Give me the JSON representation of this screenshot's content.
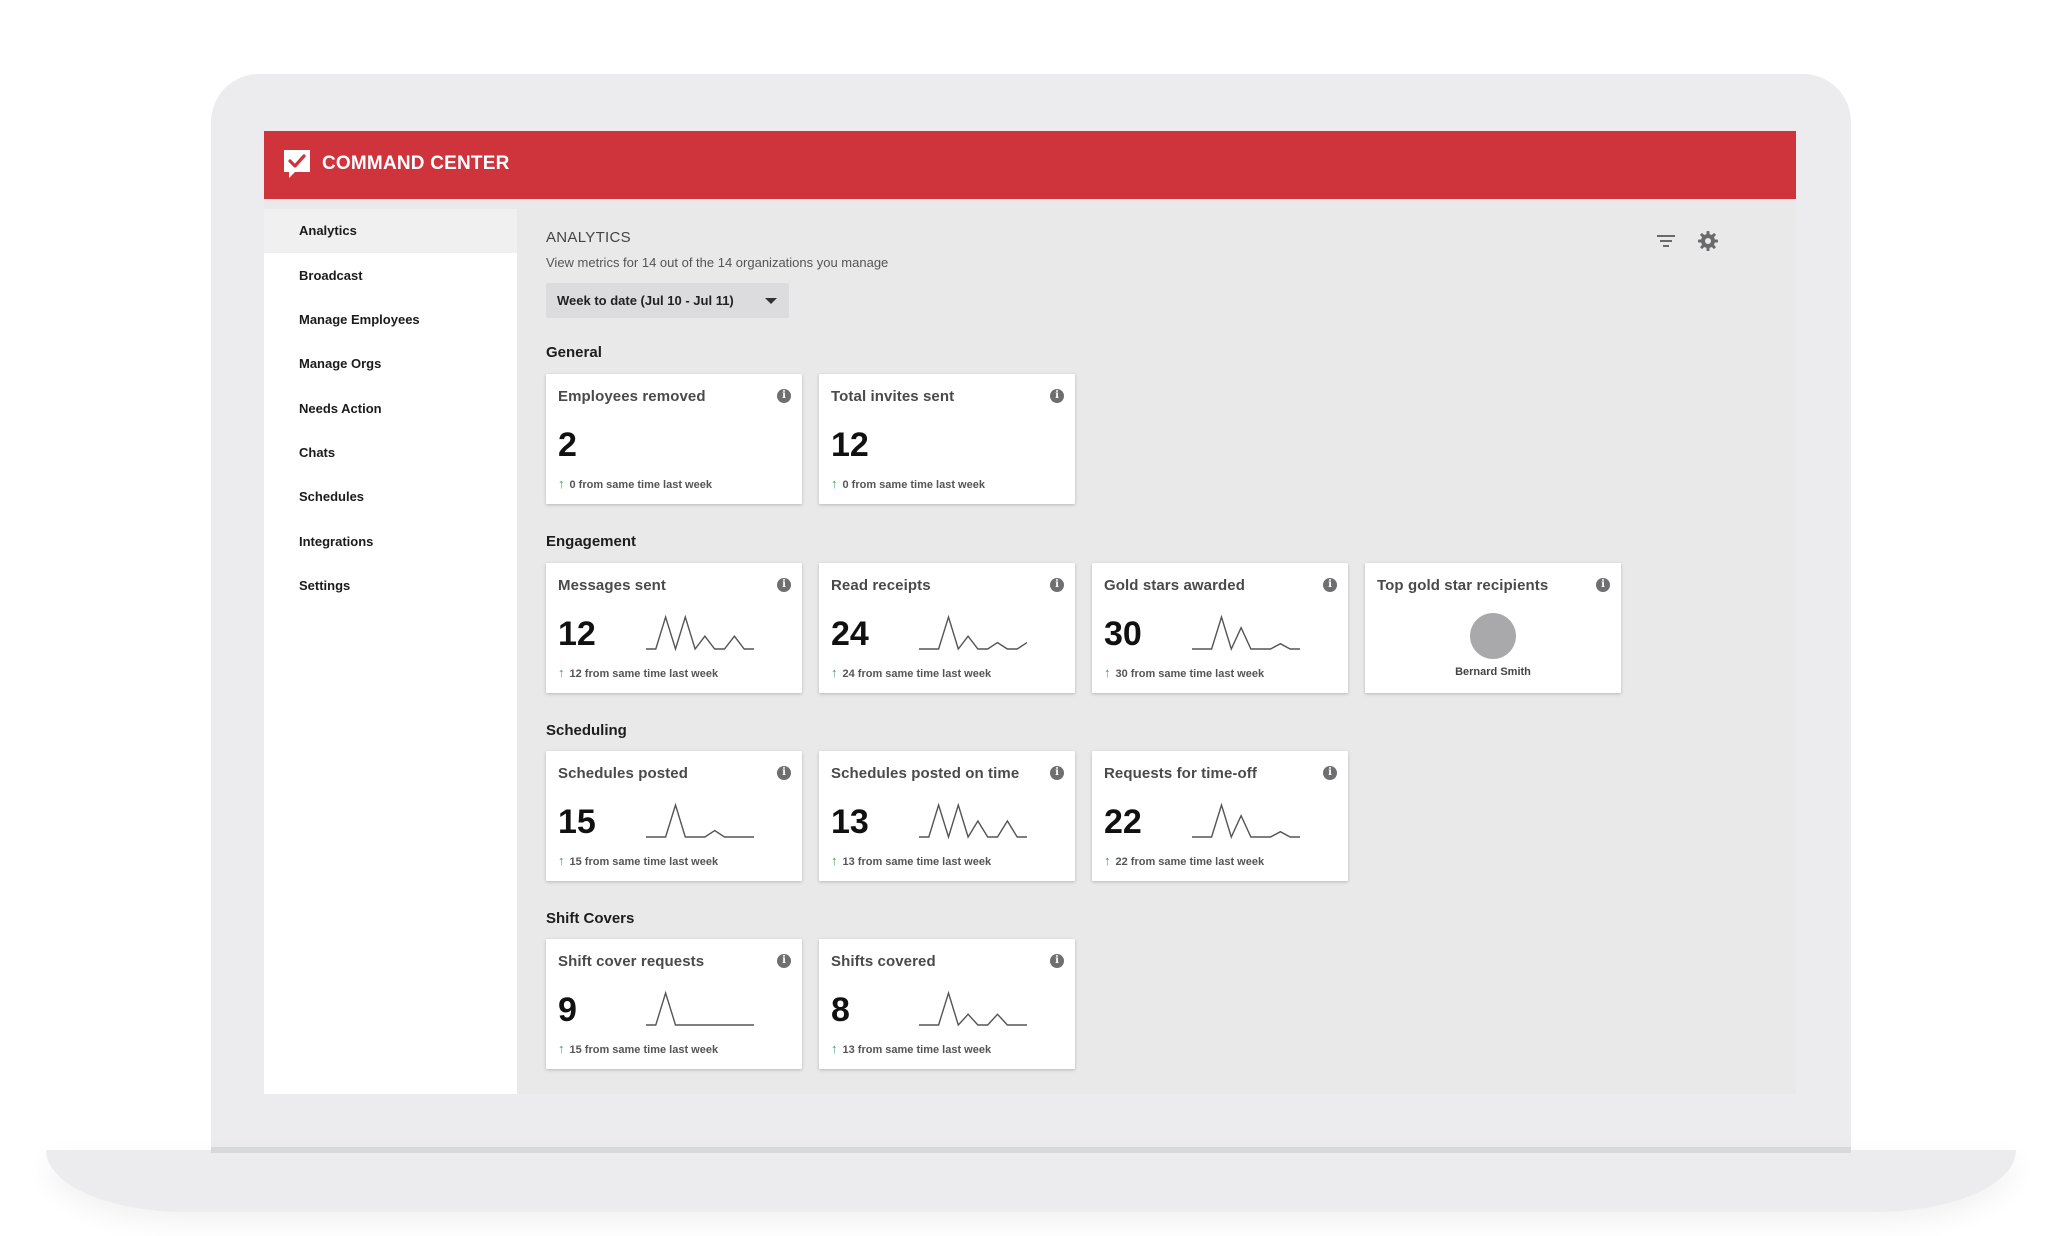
{
  "app": {
    "title": "COMMAND CENTER"
  },
  "sidebar": {
    "items": [
      {
        "label": "Analytics",
        "active": true
      },
      {
        "label": "Broadcast"
      },
      {
        "label": "Manage Employees"
      },
      {
        "label": "Manage Orgs"
      },
      {
        "label": "Needs Action"
      },
      {
        "label": "Chats"
      },
      {
        "label": "Schedules"
      },
      {
        "label": "Integrations"
      },
      {
        "label": "Settings"
      }
    ]
  },
  "main": {
    "title": "ANALYTICS",
    "subtitle": "View metrics for 14 out of the 14 organizations you manage",
    "date_range": "Week to date (Jul 10 - Jul 11)",
    "toolbar_icons": [
      "filter-icon",
      "settings-icon"
    ],
    "sections": [
      {
        "heading": "General",
        "cards": [
          {
            "title": "Employees removed",
            "value": "2",
            "delta": "0 from same time last week"
          },
          {
            "title": "Total invites sent",
            "value": "12",
            "delta": "0 from same time last week"
          }
        ]
      },
      {
        "heading": "Engagement",
        "cards": [
          {
            "title": "Messages sent",
            "value": "12",
            "delta": "12 from same time last week",
            "sparkline": [
              0,
              0,
              5,
              0,
              5,
              0,
              2,
              0,
              0,
              2,
              0,
              0
            ]
          },
          {
            "title": "Read receipts",
            "value": "24",
            "delta": "24 from same time last week",
            "sparkline": [
              0,
              0,
              0,
              5,
              0,
              2,
              0,
              0,
              1,
              0,
              0,
              1
            ]
          },
          {
            "title": "Gold stars awarded",
            "value": "30",
            "delta": "30 from same time last week",
            "sparkline": [
              0,
              0,
              0,
              6,
              0,
              4,
              0,
              0,
              0,
              1,
              0,
              0
            ]
          },
          {
            "title": "Top gold star recipients",
            "recipient": "Bernard Smith"
          }
        ]
      },
      {
        "heading": "Scheduling",
        "cards": [
          {
            "title": "Schedules posted",
            "value": "15",
            "delta": "15 from same time last week",
            "sparkline": [
              0,
              0,
              0,
              5,
              0,
              0,
              0,
              1,
              0,
              0,
              0,
              0
            ]
          },
          {
            "title": "Schedules posted on time",
            "value": "13",
            "delta": "13 from same time last week",
            "sparkline": [
              0,
              0,
              4,
              0,
              4,
              0,
              2,
              0,
              0,
              2,
              0,
              0
            ]
          },
          {
            "title": "Requests for time-off",
            "value": "22",
            "delta": "22 from same time last week",
            "sparkline": [
              0,
              0,
              0,
              6,
              0,
              4,
              0,
              0,
              0,
              1,
              0,
              0
            ]
          }
        ]
      },
      {
        "heading": "Shift Covers",
        "cards": [
          {
            "title": "Shift cover requests",
            "value": "9",
            "delta": "15 from same time last week",
            "sparkline": [
              0,
              0,
              3,
              0,
              0,
              0,
              0,
              0,
              0,
              0,
              0,
              0
            ]
          },
          {
            "title": "Shifts covered",
            "value": "8",
            "delta": "13 from same time last week",
            "sparkline": [
              0,
              0,
              0,
              3,
              0,
              1,
              0,
              0,
              1,
              0,
              0,
              0
            ]
          }
        ]
      }
    ]
  },
  "colors": {
    "brand": "#cf343d",
    "delta_up": "#3f9f5a",
    "avatar": "#a9a9ab"
  }
}
